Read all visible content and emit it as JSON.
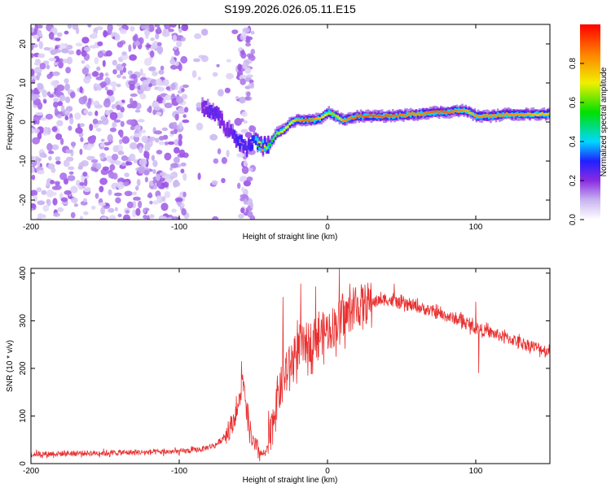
{
  "title": "S199.2026.026.05.11.E15",
  "chart_data": [
    {
      "type": "heatmap",
      "name": "spectrogram",
      "xlabel": "Height of straight line (km)",
      "ylabel": "Frequency (Hz)",
      "xlim": [
        -200,
        150
      ],
      "ylim": [
        -25,
        25
      ],
      "xticks": [
        -200,
        -100,
        0,
        100
      ],
      "xtick_labels": [
        "-200",
        "-100",
        "0",
        "100"
      ],
      "yticks": [
        -20,
        -10,
        0,
        10,
        20
      ],
      "ytick_labels": [
        "-20",
        "-10",
        "0",
        "10",
        "20"
      ],
      "colorbar": {
        "label": "Normalized spectral amplitude",
        "range": [
          0,
          1
        ],
        "ticks": [
          0.0,
          0.2,
          0.4,
          0.6,
          0.8
        ],
        "tick_labels": [
          "0.0",
          "0.2",
          "0.4",
          "0.6",
          "0.8"
        ],
        "colors": [
          "#ffffff",
          "#c8b4f0",
          "#8a2be2",
          "#2020ff",
          "#00d8ff",
          "#00e000",
          "#f0f000",
          "#ff8000",
          "#ff0000"
        ]
      },
      "ridge": {
        "x": [
          -85,
          -80,
          -75,
          -70,
          -65,
          -60,
          -55,
          -50,
          -45,
          -40,
          -35,
          -30,
          -25,
          -20,
          -15,
          -10,
          -5,
          0,
          5,
          10,
          20,
          40,
          60,
          70,
          80,
          90,
          95,
          100,
          110,
          120,
          130,
          140,
          150
        ],
        "freq_hz": [
          4,
          3,
          2,
          -1,
          -3,
          -5,
          -7,
          -5,
          -6,
          -6,
          -3,
          -2,
          0,
          0.5,
          0.5,
          0.5,
          1,
          2.5,
          1.5,
          0.5,
          1.5,
          1.5,
          2,
          2.5,
          2.5,
          3,
          2.5,
          1.5,
          1.5,
          2,
          2,
          2,
          2
        ],
        "amplitude": [
          0.25,
          0.3,
          0.3,
          0.25,
          0.3,
          0.35,
          0.3,
          0.4,
          0.9,
          0.6,
          0.7,
          0.75,
          0.75,
          0.85,
          0.9,
          0.85,
          0.8,
          0.7,
          0.7,
          0.85,
          0.9,
          0.9,
          0.85,
          0.9,
          0.9,
          0.85,
          0.8,
          0.85,
          0.85,
          0.85,
          0.85,
          0.8,
          0.8
        ]
      },
      "noise_region_x": [
        -200,
        -50
      ]
    },
    {
      "type": "line",
      "name": "snr",
      "xlabel": "Height of straight line (km)",
      "ylabel": "SNR (10 * v/v)",
      "xlim": [
        -200,
        150
      ],
      "ylim": [
        0,
        410
      ],
      "xticks": [
        -200,
        -100,
        0,
        100
      ],
      "xtick_labels": [
        "-200",
        "-100",
        "0",
        "100"
      ],
      "yticks": [
        0,
        100,
        200,
        300,
        400
      ],
      "ytick_labels": [
        "0",
        "100",
        "200",
        "300",
        "400"
      ],
      "color": "#e83030",
      "envelope": {
        "x": [
          -200,
          -100,
          -85,
          -75,
          -70,
          -65,
          -60,
          -57,
          -55,
          -50,
          -45,
          -42,
          -38,
          -35,
          -30,
          -25,
          -20,
          -15,
          -10,
          -5,
          0,
          5,
          8,
          10,
          15,
          20,
          25,
          30,
          40,
          50,
          60,
          70,
          80,
          90,
          100,
          110,
          120,
          130,
          140,
          150
        ],
        "y": [
          20,
          25,
          30,
          40,
          55,
          80,
          120,
          180,
          110,
          40,
          20,
          20,
          60,
          130,
          170,
          210,
          240,
          250,
          260,
          270,
          280,
          290,
          300,
          300,
          320,
          330,
          335,
          340,
          345,
          335,
          330,
          320,
          310,
          300,
          285,
          275,
          265,
          255,
          245,
          235
        ]
      },
      "spikes": [
        {
          "x": -58,
          "y": 215
        },
        {
          "x": -30,
          "y": 350
        },
        {
          "x": -18,
          "y": 378
        },
        {
          "x": -8,
          "y": 372
        },
        {
          "x": 8,
          "y": 412
        },
        {
          "x": 45,
          "y": 378
        },
        {
          "x": 100,
          "y": 340
        },
        {
          "x": 102,
          "y": 190
        }
      ]
    }
  ]
}
